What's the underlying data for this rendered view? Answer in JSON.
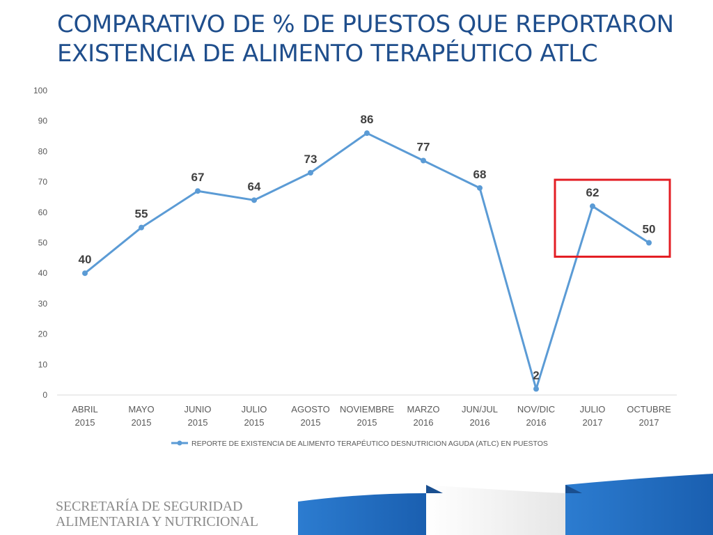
{
  "slide": {
    "title_line1": "COMPARATIVO DE % DE PUESTOS QUE REPORTARON",
    "title_line2": "EXISTENCIA DE ALIMENTO TERAPÉUTICO ATLC",
    "org_line1": "SECRETARÍA DE SEGURIDAD",
    "org_line2": "ALIMENTARIA Y NUTRICIONAL"
  },
  "colors": {
    "title": "#1f4e8c",
    "series": "#5b9bd5",
    "highlight_box": "#e31e24",
    "footer_blue": "#1e6fc0"
  },
  "chart_data": {
    "type": "line",
    "title": "",
    "xlabel": "",
    "ylabel": "",
    "ylim": [
      0,
      100
    ],
    "yticks": [
      0,
      10,
      20,
      30,
      40,
      50,
      60,
      70,
      80,
      90,
      100
    ],
    "grid": false,
    "legend_position": "bottom",
    "categories": [
      [
        "ABRIL",
        "2015"
      ],
      [
        "MAYO",
        "2015"
      ],
      [
        "JUNIO",
        "2015"
      ],
      [
        "JULIO",
        "2015"
      ],
      [
        "AGOSTO",
        "2015"
      ],
      [
        "NOVIEMBRE",
        "2015"
      ],
      [
        "MARZO",
        "2016"
      ],
      [
        "JUN/JUL",
        "2016"
      ],
      [
        "NOV/DIC",
        "2016"
      ],
      [
        "JULIO",
        "2017"
      ],
      [
        "OCTUBRE",
        "2017"
      ]
    ],
    "series": [
      {
        "name": "REPORTE DE EXISTENCIA DE ALIMENTO TERAPÉUTICO DESNUTRICION AGUDA (ATLC) EN PUESTOS",
        "values": [
          40,
          55,
          67,
          64,
          73,
          86,
          77,
          68,
          2,
          62,
          50
        ]
      }
    ],
    "highlight": {
      "from_index": 9,
      "to_index": 10
    }
  }
}
